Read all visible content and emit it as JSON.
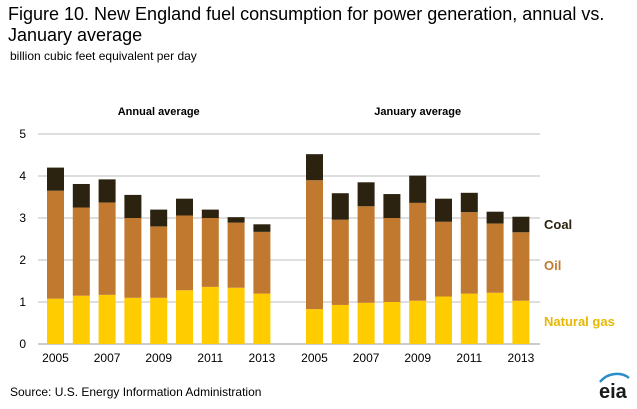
{
  "title": "Figure 10. New England fuel consumption for power generation, annual vs. January average",
  "subtitle": "billion cubic feet equivalent  per day",
  "source": "Source:  U.S. Energy Information Administration",
  "logo_text": "eia",
  "colors": {
    "natural_gas": "#FFCC00",
    "oil": "#C0792E",
    "coal": "#2B2310",
    "natural_gas_label": "#E8B800",
    "oil_label": "#C0792E",
    "coal_label": "#2B2310",
    "grid": "#BDBDBD",
    "logo_swoosh": "#2A8CC8"
  },
  "chart_data": {
    "type": "bar",
    "stacked": true,
    "ylim": [
      0,
      5
    ],
    "yticks": [
      "0",
      "1",
      "2",
      "3",
      "4",
      "5"
    ],
    "grid": true,
    "panels": [
      {
        "label": "Annual average",
        "categories": [
          "2005",
          "2006",
          "2007",
          "2008",
          "2009",
          "2010",
          "2011",
          "2012",
          "2013"
        ],
        "tick_labels": [
          "2005",
          "",
          "2007",
          "",
          "2009",
          "",
          "2011",
          "",
          "2013"
        ],
        "series": [
          {
            "name": "Natural gas",
            "values": [
              1.08,
              1.15,
              1.17,
              1.1,
              1.1,
              1.28,
              1.36,
              1.34,
              1.2
            ]
          },
          {
            "name": "Oil",
            "values": [
              2.57,
              2.1,
              2.2,
              1.9,
              1.7,
              1.78,
              1.64,
              1.55,
              1.47
            ]
          },
          {
            "name": "Coal",
            "values": [
              0.55,
              0.56,
              0.55,
              0.55,
              0.4,
              0.4,
              0.2,
              0.13,
              0.18
            ]
          }
        ]
      },
      {
        "label": "January average",
        "categories": [
          "2005",
          "2006",
          "2007",
          "2008",
          "2009",
          "2010",
          "2011",
          "2012",
          "2013"
        ],
        "tick_labels": [
          "2005",
          "",
          "2007",
          "",
          "2009",
          "",
          "2011",
          "",
          "2013"
        ],
        "series": [
          {
            "name": "Natural gas",
            "values": [
              0.83,
              0.93,
              0.98,
              1.0,
              1.03,
              1.13,
              1.2,
              1.22,
              1.03
            ]
          },
          {
            "name": "Oil",
            "values": [
              3.07,
              2.03,
              2.3,
              2.0,
              2.33,
              1.78,
              1.94,
              1.65,
              1.63
            ]
          },
          {
            "name": "Coal",
            "values": [
              0.62,
              0.63,
              0.57,
              0.57,
              0.65,
              0.55,
              0.46,
              0.28,
              0.37
            ]
          }
        ]
      }
    ],
    "legend": [
      {
        "label": "Coal",
        "series": "Coal"
      },
      {
        "label": "Oil",
        "series": "Oil"
      },
      {
        "label": "Natural gas",
        "series": "Natural gas"
      }
    ],
    "legend_placement": "right, inline labels"
  }
}
